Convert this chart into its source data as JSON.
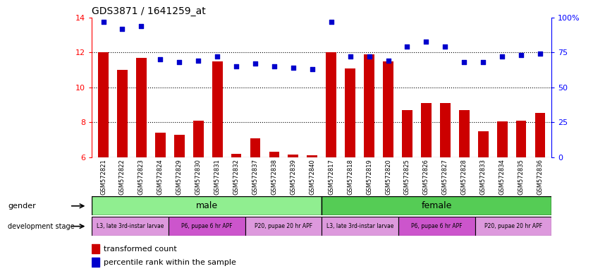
{
  "title": "GDS3871 / 1641259_at",
  "samples": [
    "GSM572821",
    "GSM572822",
    "GSM572823",
    "GSM572824",
    "GSM572829",
    "GSM572830",
    "GSM572831",
    "GSM572832",
    "GSM572837",
    "GSM572838",
    "GSM572839",
    "GSM572840",
    "GSM572817",
    "GSM572818",
    "GSM572819",
    "GSM572820",
    "GSM572825",
    "GSM572826",
    "GSM572827",
    "GSM572828",
    "GSM572833",
    "GSM572834",
    "GSM572835",
    "GSM572836"
  ],
  "bar_values": [
    12.0,
    11.0,
    11.7,
    7.4,
    7.3,
    8.1,
    11.5,
    6.2,
    7.1,
    6.3,
    6.15,
    6.1,
    12.0,
    11.1,
    11.9,
    11.5,
    8.7,
    9.1,
    9.1,
    8.7,
    7.5,
    8.05,
    8.1,
    8.55
  ],
  "percentile_values": [
    97,
    92,
    94,
    70,
    68,
    69,
    72,
    65,
    67,
    65,
    64,
    63,
    97,
    72,
    72,
    69,
    79,
    83,
    79,
    68,
    68,
    72,
    73,
    74
  ],
  "ylim_left": [
    6,
    14
  ],
  "ylim_right": [
    0,
    100
  ],
  "yticks_left": [
    6,
    8,
    10,
    12,
    14
  ],
  "yticks_right": [
    0,
    25,
    50,
    75,
    100
  ],
  "bar_color": "#cc0000",
  "scatter_color": "#0000cc",
  "gender_male_color": "#90ee90",
  "gender_female_color": "#55cc55",
  "dev_light_color": "#dd99dd",
  "dev_dark_color": "#cc55cc",
  "n_male": 12,
  "n_female": 12,
  "dev_labels": [
    "L3, late 3rd-instar larvae",
    "P6, pupae 6 hr APF",
    "P20, pupae 20 hr APF"
  ],
  "dev_male_counts": [
    4,
    4,
    4
  ],
  "dev_female_counts": [
    4,
    4,
    4
  ],
  "hgrid_lines": [
    8,
    10,
    12
  ]
}
